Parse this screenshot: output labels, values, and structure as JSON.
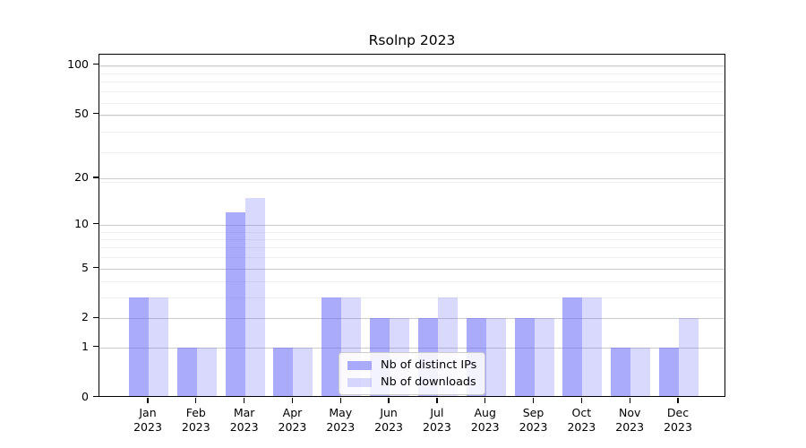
{
  "chart_data": {
    "type": "bar",
    "title": "Rsolnp 2023",
    "months": [
      "Jan",
      "Feb",
      "Mar",
      "Apr",
      "May",
      "Jun",
      "Jul",
      "Aug",
      "Sep",
      "Oct",
      "Nov",
      "Dec"
    ],
    "year_label": "2023",
    "y_tick_labels": [
      0,
      1,
      2,
      5,
      10,
      20,
      50,
      100
    ],
    "y_scale": "log10(1+x)",
    "ylim": [
      0,
      100
    ],
    "grid": true,
    "legend_position": "bottom-center",
    "series": [
      {
        "name": "Nb of distinct IPs",
        "color": "rgba(102,102,250,0.55)",
        "values": [
          3,
          1,
          12,
          1,
          3,
          2,
          2,
          2,
          2,
          3,
          1,
          1
        ]
      },
      {
        "name": "Nb of downloads",
        "color": "rgba(102,102,250,0.25)",
        "values": [
          3,
          1,
          15,
          1,
          3,
          2,
          3,
          2,
          2,
          3,
          1,
          2
        ]
      }
    ],
    "colors": {
      "grid_major": "#cbcbcb",
      "grid_minor": "#f0f0f0",
      "axis": "#000000",
      "text": "#000000",
      "legend_border": "#cccccc",
      "background": "#ffffff"
    }
  }
}
